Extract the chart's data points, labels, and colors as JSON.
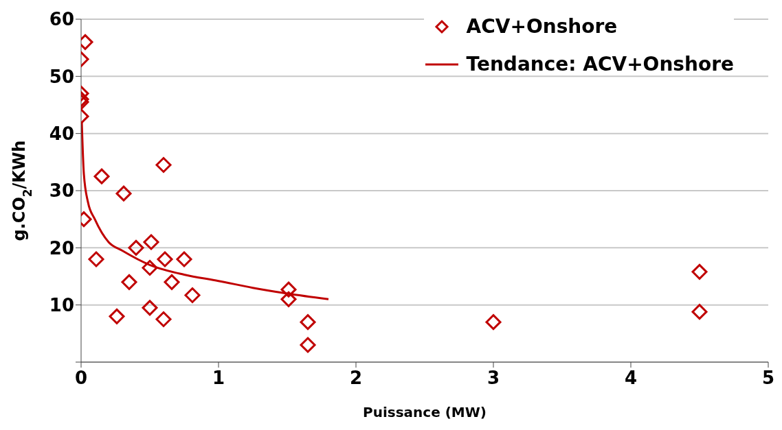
{
  "chart_data": {
    "type": "scatter",
    "xlabel": "Puissance (MW)",
    "ylabel": "g.CO$_{2}$/KWh",
    "xlim": [
      0,
      5
    ],
    "xticks": [
      0,
      1,
      2,
      3,
      4,
      5
    ],
    "ylim": [
      0,
      60
    ],
    "yticks": [
      {
        "value": 0,
        "label": null
      },
      10,
      20,
      30,
      40,
      50,
      60
    ],
    "grid": "y",
    "legend": "top right",
    "series": [
      {
        "name": "ACV+Onshore",
        "marker": "diamond",
        "color": "#c00000",
        "x": [
          0.03,
          0,
          0,
          0,
          0,
          0,
          0.02,
          0.15,
          0.11,
          0.31,
          0.26,
          0.6,
          0.35,
          0.4,
          0.51,
          0.5,
          0.61,
          0.75,
          0.66,
          0.81,
          0.5,
          0.6,
          1.51,
          1.51,
          1.65,
          1.65,
          3,
          4.5,
          4.5
        ],
        "values": [
          56,
          53,
          47,
          46,
          45.5,
          43,
          25,
          32.5,
          18,
          29.5,
          8,
          34.5,
          14,
          20,
          21,
          16.5,
          18,
          18,
          14,
          11.7,
          9.5,
          7.5,
          12.7,
          11,
          7,
          3,
          7,
          15.8,
          8.8
        ]
      },
      {
        "name": "Tendance: ACV+Onshore",
        "type": "line",
        "color": "#c00000",
        "line_style": "solid",
        "x": [
          0.005,
          0.02,
          0.05,
          0.1,
          0.2,
          0.3,
          0.5,
          0.75,
          1,
          1.25,
          1.5,
          1.8
        ],
        "values": [
          42,
          33,
          28,
          25,
          21,
          19.5,
          17,
          15.3,
          14.2,
          13,
          12,
          11
        ]
      }
    ]
  }
}
